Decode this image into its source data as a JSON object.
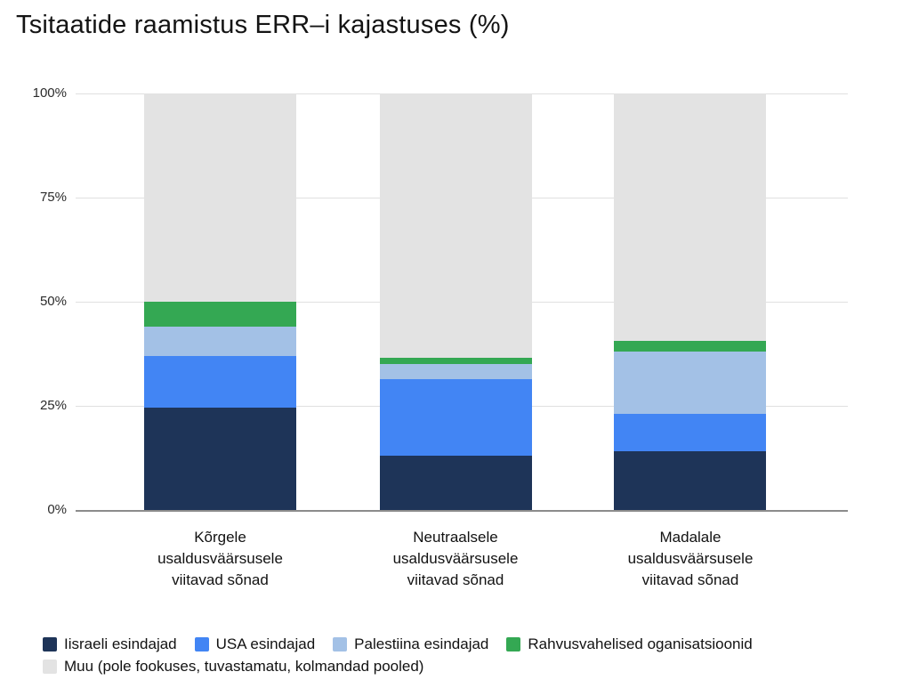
{
  "title": "Tsitaatide raamistus ERR–i kajastuses (%)",
  "chart_data": {
    "type": "bar",
    "stacked": true,
    "units": "%",
    "title": "Tsitaatide raamistus ERR–i kajastuses (%)",
    "xlabel": "",
    "ylabel": "",
    "ylim": [
      0,
      100
    ],
    "grid": true,
    "legend_position": "bottom",
    "categories": [
      "Kõrgele\nusaldusväärsusele\nviitavad sõnad",
      "Neutraalsele\nusaldusväärsusele\nviitavad sõnad",
      "Madalale\nusaldusväärsusele\nviitavad sõnad"
    ],
    "y_ticks": [
      {
        "value": 0,
        "label": "0%"
      },
      {
        "value": 25,
        "label": "25%"
      },
      {
        "value": 50,
        "label": "50%"
      },
      {
        "value": 75,
        "label": "75%"
      },
      {
        "value": 100,
        "label": "100%"
      }
    ],
    "series": [
      {
        "name": "Iisraeli esindajad",
        "color": "#1e3458",
        "values": [
          24.5,
          13.0,
          14.0
        ]
      },
      {
        "name": "USA esindajad",
        "color": "#4285f4",
        "values": [
          12.5,
          18.5,
          9.0
        ]
      },
      {
        "name": "Palestiina esindajad",
        "color": "#a3c1e6",
        "values": [
          7.0,
          3.5,
          15.0
        ]
      },
      {
        "name": "Rahvusvahelised oganisatsioonid",
        "color": "#34a853",
        "values": [
          6.0,
          1.5,
          2.5
        ]
      },
      {
        "name": "Muu (pole fookuses, tuvastamatu, kolmandad pooled)",
        "color": "#e3e3e3",
        "values": [
          50.0,
          63.5,
          59.5
        ]
      }
    ]
  },
  "colors": {
    "background": "#ffffff",
    "gridline": "#e0e0e0",
    "axis_line": "#8c8c8c",
    "title_text": "#141414",
    "tick_text": "#2b2b2b",
    "label_text": "#121212"
  }
}
